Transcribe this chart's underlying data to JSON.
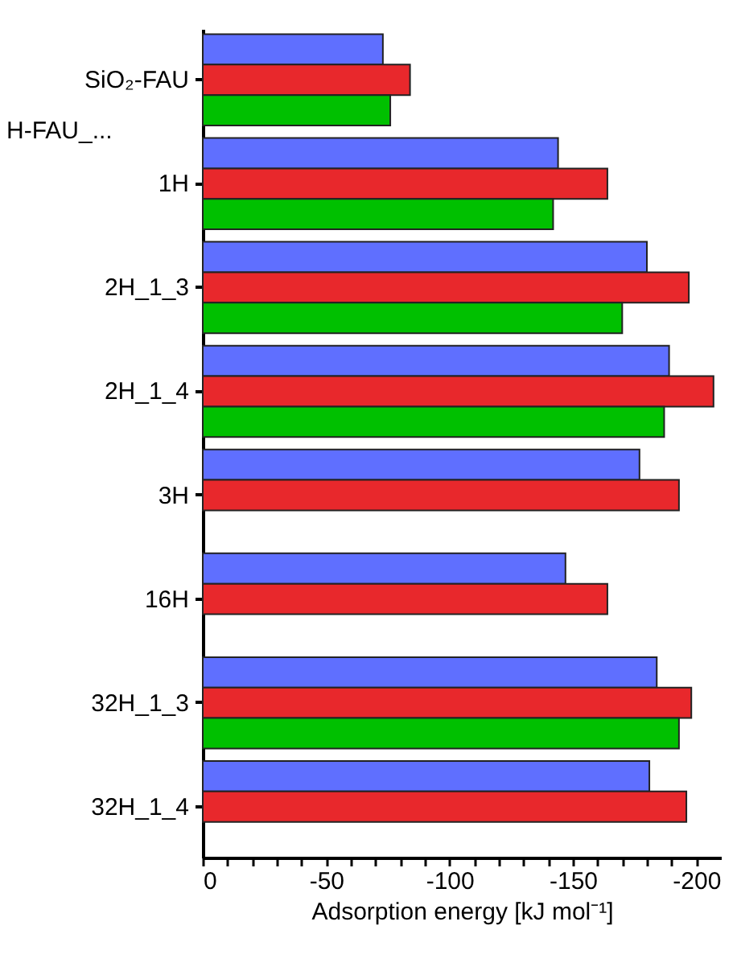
{
  "chart_data": {
    "type": "bar",
    "orientation": "horizontal",
    "xlabel": "Adsorption energy [kJ mol⁻¹]",
    "categories": [
      "SiO₂-FAU",
      "1H",
      "2H_1_3",
      "2H_1_4",
      "3H",
      "16H",
      "32H_1_3",
      "32H_1_4"
    ],
    "series": [
      {
        "color": "#5f6fff",
        "values": [
          -73,
          -144,
          -180,
          -189,
          -177,
          -147,
          -184,
          -181
        ]
      },
      {
        "color": "#e8282c",
        "values": [
          -84,
          -164,
          -197,
          -207,
          -193,
          -164,
          -198,
          -196
        ]
      },
      {
        "color": "#00c000",
        "values": [
          -76,
          -142,
          -170,
          -187,
          null,
          null,
          -193,
          null
        ]
      }
    ],
    "xlim": [
      0,
      -210
    ],
    "xticks": [
      0,
      {
        "value": -10,
        "label": null
      },
      {
        "value": -20,
        "label": null
      },
      {
        "value": -30,
        "label": null
      },
      {
        "value": -40,
        "label": null
      },
      -50,
      {
        "value": -60,
        "label": null
      },
      {
        "value": -70,
        "label": null
      },
      {
        "value": -80,
        "label": null
      },
      {
        "value": -90,
        "label": null
      },
      -100,
      {
        "value": -110,
        "label": null
      },
      {
        "value": -120,
        "label": null
      },
      {
        "value": -130,
        "label": null
      },
      {
        "value": -140,
        "label": null
      },
      -150,
      {
        "value": -160,
        "label": null
      },
      {
        "value": -170,
        "label": null
      },
      {
        "value": -180,
        "label": null
      },
      {
        "value": -190,
        "label": null
      },
      -200
    ],
    "annotations": [
      "H-FAU_..."
    ],
    "grid": false,
    "legend": false
  }
}
